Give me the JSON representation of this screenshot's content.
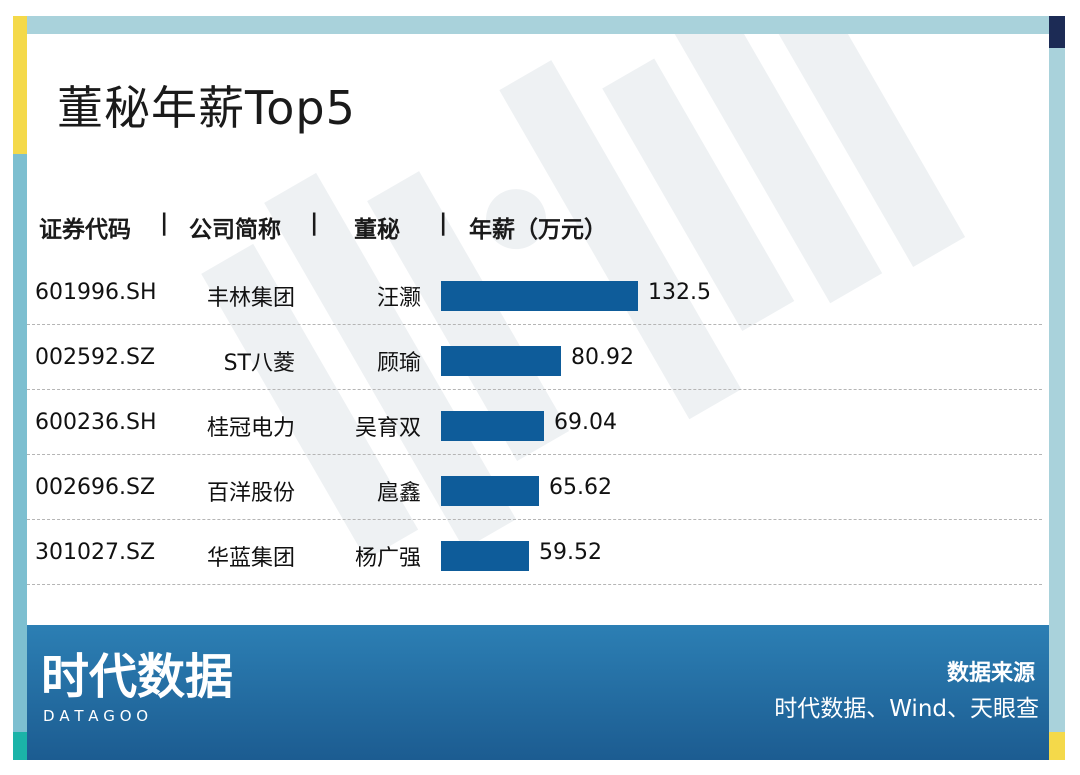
{
  "title": "董秘年薪Top5",
  "header": {
    "code": "证券代码",
    "company": "公司简称",
    "person": "董秘",
    "salary": "年薪（万元）",
    "sep": "|"
  },
  "chart_data": {
    "type": "bar",
    "orientation": "horizontal",
    "unit": "万元",
    "rows": [
      {
        "code": "601996.SH",
        "company": "丰林集团",
        "person": "汪灏",
        "value": 132.5,
        "label": "132.5"
      },
      {
        "code": "002592.SZ",
        "company": "ST八菱",
        "person": "顾瑜",
        "value": 80.92,
        "label": "80.92"
      },
      {
        "code": "600236.SH",
        "company": "桂冠电力",
        "person": "吴育双",
        "value": 69.04,
        "label": "69.04"
      },
      {
        "code": "002696.SZ",
        "company": "百洋股份",
        "person": "扈鑫",
        "value": 65.62,
        "label": "65.62"
      },
      {
        "code": "301027.SZ",
        "company": "华蓝集团",
        "person": "杨广强",
        "value": 59.52,
        "label": "59.52"
      }
    ]
  },
  "footer": {
    "logo_text": "时代数据",
    "logo_sub": "D A T A G O O",
    "source_title": "数据来源",
    "source_text": "时代数据、Wind、天眼查"
  },
  "colors": {
    "bar": "#0e5c9a",
    "footer": "#1c5c91",
    "frame": "#a9d2db"
  }
}
